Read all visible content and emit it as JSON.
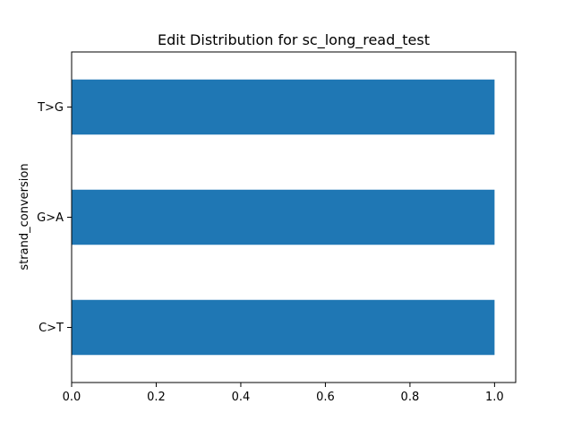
{
  "chart_data": {
    "type": "bar",
    "orientation": "horizontal",
    "title": "Edit Distribution for sc_long_read_test",
    "xlabel": "",
    "ylabel": "strand_conversion",
    "categories": [
      "C>T",
      "G>A",
      "T>G"
    ],
    "values": [
      1.0,
      1.0,
      1.0
    ],
    "xlim": [
      0.0,
      1.05
    ],
    "xticks": [
      0.0,
      0.2,
      0.4,
      0.6,
      0.8,
      1.0
    ],
    "xtick_labels": [
      "0.0",
      "0.2",
      "0.4",
      "0.6",
      "0.8",
      "1.0"
    ],
    "grid": false,
    "bar_color": "#1f77b4"
  }
}
